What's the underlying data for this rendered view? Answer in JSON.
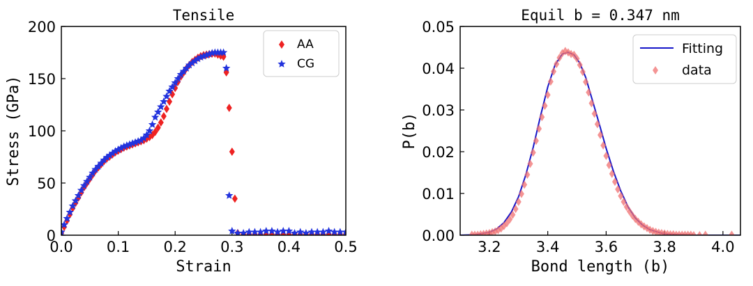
{
  "chart_data": [
    {
      "type": "scatter",
      "title": "Tensile",
      "xlabel": "Strain",
      "ylabel": "Stress (GPa)",
      "xlim": [
        0.0,
        0.5
      ],
      "ylim": [
        0,
        200
      ],
      "xticks": [
        "0.0",
        "0.1",
        "0.2",
        "0.3",
        "0.4",
        "0.5"
      ],
      "xtick_values": [
        0.0,
        0.1,
        0.2,
        0.3,
        0.4,
        0.5
      ],
      "yticks": [
        "0",
        "50",
        "100",
        "150",
        "200"
      ],
      "ytick_values": [
        0,
        50,
        100,
        150,
        200
      ],
      "legend_position": "top-right",
      "series": [
        {
          "name": "AA",
          "marker": "diamond",
          "color": "#ee2222",
          "x": [
            0.0,
            0.005,
            0.01,
            0.015,
            0.02,
            0.025,
            0.03,
            0.035,
            0.04,
            0.045,
            0.05,
            0.055,
            0.06,
            0.065,
            0.07,
            0.075,
            0.08,
            0.085,
            0.09,
            0.095,
            0.1,
            0.105,
            0.11,
            0.115,
            0.12,
            0.125,
            0.13,
            0.135,
            0.14,
            0.145,
            0.15,
            0.155,
            0.16,
            0.165,
            0.17,
            0.175,
            0.18,
            0.185,
            0.19,
            0.195,
            0.2,
            0.205,
            0.21,
            0.215,
            0.22,
            0.225,
            0.23,
            0.235,
            0.24,
            0.245,
            0.25,
            0.255,
            0.26,
            0.265,
            0.27,
            0.275,
            0.28,
            0.285,
            0.29,
            0.295,
            0.3,
            0.305,
            0.31,
            0.32,
            0.33,
            0.34,
            0.35,
            0.36,
            0.37,
            0.38,
            0.39,
            0.4,
            0.41,
            0.42,
            0.43,
            0.44,
            0.45,
            0.46,
            0.47,
            0.48,
            0.49,
            0.5
          ],
          "y": [
            2,
            8,
            14,
            20,
            26,
            31,
            36,
            41,
            46,
            50,
            54,
            58,
            62,
            65,
            68,
            71,
            73.5,
            75.5,
            77.5,
            79.5,
            81,
            82.5,
            84,
            85,
            86,
            87,
            88,
            89,
            90,
            91,
            92.5,
            94,
            96,
            99,
            103,
            108,
            114,
            121,
            128,
            135,
            141,
            147,
            152,
            156,
            160,
            163,
            166,
            168,
            170,
            171.5,
            172.5,
            173,
            173.5,
            174,
            174,
            173,
            172,
            171,
            156,
            122,
            80,
            35,
            2,
            1,
            1,
            1,
            1,
            1,
            1,
            1,
            1,
            1,
            1,
            1,
            1,
            1,
            1,
            1,
            1,
            1,
            1,
            1
          ]
        },
        {
          "name": "CG",
          "marker": "star",
          "color": "#2233dd",
          "x": [
            0.0,
            0.005,
            0.01,
            0.015,
            0.02,
            0.025,
            0.03,
            0.035,
            0.04,
            0.045,
            0.05,
            0.055,
            0.06,
            0.065,
            0.07,
            0.075,
            0.08,
            0.085,
            0.09,
            0.095,
            0.1,
            0.105,
            0.11,
            0.115,
            0.12,
            0.125,
            0.13,
            0.135,
            0.14,
            0.145,
            0.15,
            0.155,
            0.16,
            0.165,
            0.17,
            0.175,
            0.18,
            0.185,
            0.19,
            0.195,
            0.2,
            0.205,
            0.21,
            0.215,
            0.22,
            0.225,
            0.23,
            0.235,
            0.24,
            0.245,
            0.25,
            0.255,
            0.26,
            0.265,
            0.27,
            0.275,
            0.28,
            0.285,
            0.29,
            0.295,
            0.3,
            0.31,
            0.32,
            0.33,
            0.34,
            0.35,
            0.36,
            0.37,
            0.38,
            0.39,
            0.4,
            0.41,
            0.42,
            0.43,
            0.44,
            0.45,
            0.46,
            0.47,
            0.48,
            0.49,
            0.5
          ],
          "y": [
            3,
            10,
            16,
            22,
            28,
            33,
            38,
            43,
            47.5,
            51.5,
            55.5,
            59.5,
            63,
            66,
            69,
            72,
            74.5,
            76.5,
            78.5,
            80.5,
            82,
            83.5,
            85,
            86,
            87,
            88,
            89,
            90,
            91,
            93,
            96,
            100,
            106,
            113,
            118,
            123,
            128,
            133,
            138,
            142,
            146,
            150,
            154,
            157,
            160,
            163,
            165,
            167,
            169,
            170.5,
            171.5,
            172.5,
            173.5,
            174.5,
            175,
            175,
            175,
            175,
            160,
            38,
            4,
            2,
            2,
            3,
            3,
            3,
            4,
            4,
            3,
            4,
            4,
            2,
            3,
            2,
            3,
            3,
            3,
            4,
            3,
            3,
            3
          ]
        }
      ]
    },
    {
      "type": "scatter",
      "title": "Equil b = 0.347 nm",
      "xlabel": "Bond length (b)",
      "ylabel": "P(b)",
      "xlim": [
        3.1,
        4.06
      ],
      "ylim": [
        0,
        0.05
      ],
      "xticks": [
        "3.2",
        "3.4",
        "3.6",
        "3.8",
        "4.0"
      ],
      "xtick_values": [
        3.2,
        3.4,
        3.6,
        3.8,
        4.0
      ],
      "yticks": [
        "0.00",
        "0.01",
        "0.02",
        "0.03",
        "0.04",
        "0.05"
      ],
      "ytick_values": [
        0.0,
        0.01,
        0.02,
        0.03,
        0.04,
        0.05
      ],
      "legend_position": "top-right",
      "series": [
        {
          "name": "Fitting",
          "kind": "line",
          "color": "#1515c8",
          "x": [
            3.1,
            3.15,
            3.2,
            3.225,
            3.25,
            3.275,
            3.3,
            3.325,
            3.35,
            3.375,
            3.4,
            3.425,
            3.45,
            3.47,
            3.49,
            3.51,
            3.53,
            3.55,
            3.575,
            3.6,
            3.625,
            3.65,
            3.675,
            3.7,
            3.725,
            3.75,
            3.8,
            3.85,
            3.9,
            4.0,
            4.06
          ],
          "y": [
            0.0,
            0.0001,
            0.0007,
            0.0015,
            0.003,
            0.0055,
            0.0092,
            0.0145,
            0.021,
            0.0285,
            0.0355,
            0.0408,
            0.0434,
            0.0438,
            0.0432,
            0.0412,
            0.0378,
            0.033,
            0.027,
            0.0208,
            0.0153,
            0.0106,
            0.0068,
            0.0041,
            0.0024,
            0.0013,
            0.0003,
            0.0001,
            0.0,
            0.0,
            0.0
          ]
        },
        {
          "name": "data",
          "kind": "scatter",
          "marker": "diamond",
          "color": "#f07070",
          "x": [
            3.14,
            3.15,
            3.16,
            3.17,
            3.18,
            3.19,
            3.2,
            3.21,
            3.22,
            3.23,
            3.24,
            3.25,
            3.26,
            3.27,
            3.28,
            3.29,
            3.3,
            3.31,
            3.32,
            3.33,
            3.34,
            3.35,
            3.36,
            3.37,
            3.38,
            3.39,
            3.4,
            3.41,
            3.42,
            3.43,
            3.44,
            3.45,
            3.46,
            3.47,
            3.48,
            3.49,
            3.5,
            3.51,
            3.52,
            3.53,
            3.54,
            3.55,
            3.56,
            3.57,
            3.58,
            3.59,
            3.6,
            3.61,
            3.62,
            3.63,
            3.64,
            3.65,
            3.66,
            3.67,
            3.68,
            3.69,
            3.7,
            3.71,
            3.72,
            3.73,
            3.74,
            3.75,
            3.76,
            3.77,
            3.78,
            3.79,
            3.8,
            3.81,
            3.82,
            3.83,
            3.84,
            3.85,
            3.86,
            3.87,
            3.88,
            3.89,
            3.9,
            3.92,
            3.94,
            4.03
          ],
          "y": [
            0.0001,
            0.0001,
            0.0001,
            0.0002,
            0.0003,
            0.0004,
            0.0005,
            0.0007,
            0.0009,
            0.0012,
            0.0016,
            0.0022,
            0.0029,
            0.0038,
            0.0049,
            0.0063,
            0.008,
            0.0099,
            0.0121,
            0.0145,
            0.0171,
            0.0198,
            0.0226,
            0.0255,
            0.0283,
            0.031,
            0.0336,
            0.0368,
            0.0392,
            0.041,
            0.0425,
            0.0436,
            0.0441,
            0.0438,
            0.0434,
            0.0432,
            0.0423,
            0.0408,
            0.0391,
            0.0367,
            0.0342,
            0.0316,
            0.0291,
            0.0266,
            0.024,
            0.0215,
            0.019,
            0.0168,
            0.0147,
            0.0128,
            0.011,
            0.0094,
            0.008,
            0.0068,
            0.0057,
            0.0047,
            0.0039,
            0.0032,
            0.0026,
            0.0021,
            0.0017,
            0.0013,
            0.001,
            0.0008,
            0.0006,
            0.0005,
            0.0004,
            0.0003,
            0.0002,
            0.0002,
            0.0001,
            0.0001,
            0.0001,
            0.0001,
            0.0001,
            0.0001,
            0.0,
            0.0,
            0.0001,
            0.0001
          ]
        }
      ]
    }
  ]
}
